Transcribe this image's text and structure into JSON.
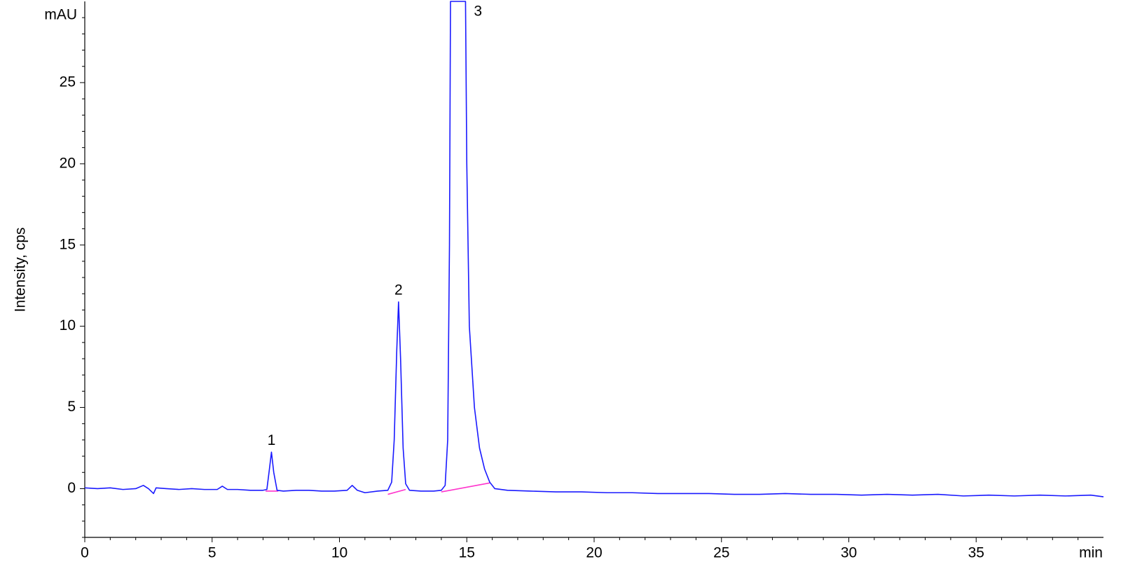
{
  "chart_data": {
    "type": "line",
    "y_label": "Intensity, cps",
    "y_unit": "mAU",
    "x_unit": "min",
    "x": [
      0,
      0.5,
      1,
      1.5,
      2,
      2.3,
      2.5,
      2.7,
      2.8,
      3.2,
      3.7,
      4.2,
      4.7,
      5.2,
      5.4,
      5.6,
      6.0,
      6.5,
      7.0,
      7.15,
      7.25,
      7.33,
      7.42,
      7.55,
      7.8,
      8.3,
      8.8,
      9.3,
      9.8,
      10.3,
      10.5,
      10.7,
      11.0,
      11.5,
      11.9,
      12.05,
      12.15,
      12.25,
      12.32,
      12.4,
      12.5,
      12.6,
      12.75,
      13.2,
      13.7,
      14.0,
      14.15,
      14.25,
      14.32,
      14.36,
      14.95,
      15.0,
      15.1,
      15.3,
      15.5,
      15.7,
      15.9,
      16.1,
      16.6,
      17.5,
      18.5,
      19.5,
      20.5,
      21.5,
      22.5,
      23.5,
      24.5,
      25.5,
      26.5,
      27.5,
      28.5,
      29.5,
      30.5,
      31.5,
      32.5,
      33.5,
      34.5,
      35.5,
      36.5,
      37.5,
      38.5,
      39.5,
      40
    ],
    "series": [
      {
        "color": "#1a1aff",
        "values": [
          0.05,
          0.0,
          0.05,
          -0.05,
          0.0,
          0.2,
          0.0,
          -0.3,
          0.05,
          0.0,
          -0.05,
          0.0,
          -0.05,
          -0.05,
          0.15,
          -0.05,
          -0.05,
          -0.1,
          -0.1,
          -0.05,
          1.2,
          2.25,
          1.0,
          -0.1,
          -0.15,
          -0.1,
          -0.1,
          -0.15,
          -0.15,
          -0.1,
          0.2,
          -0.1,
          -0.25,
          -0.15,
          -0.1,
          0.4,
          3.0,
          8.5,
          11.5,
          8.0,
          2.5,
          0.3,
          -0.1,
          -0.15,
          -0.15,
          -0.1,
          0.2,
          3.0,
          15,
          30,
          30,
          20,
          10,
          5.0,
          2.5,
          1.2,
          0.4,
          0.0,
          -0.1,
          -0.15,
          -0.2,
          -0.2,
          -0.25,
          -0.25,
          -0.3,
          -0.3,
          -0.3,
          -0.35,
          -0.35,
          -0.3,
          -0.35,
          -0.35,
          -0.4,
          -0.35,
          -0.4,
          -0.35,
          -0.45,
          -0.4,
          -0.45,
          -0.4,
          -0.45,
          -0.4,
          -0.5
        ]
      }
    ],
    "baselines": {
      "color": "#ff33cc",
      "segments": [
        {
          "x": [
            7.1,
            7.6
          ],
          "values": [
            -0.15,
            -0.15
          ]
        },
        {
          "x": [
            11.9,
            12.6
          ],
          "values": [
            -0.35,
            -0.05
          ]
        },
        {
          "x": [
            14.0,
            15.9
          ],
          "values": [
            -0.2,
            0.35
          ]
        }
      ]
    },
    "peaks": [
      {
        "label": "1",
        "x": 7.33,
        "y": 2.25
      },
      {
        "label": "2",
        "x": 12.32,
        "y": 11.5
      },
      {
        "label": "3",
        "x": 14.95,
        "y": 30
      }
    ],
    "xlim": [
      0,
      40
    ],
    "ylim": [
      -3,
      30
    ],
    "xticks": [
      0,
      5,
      10,
      15,
      20,
      25,
      30,
      35
    ],
    "yticks": [
      0,
      5,
      10,
      15,
      20,
      25
    ],
    "x_minor_ticks": [
      1,
      2,
      3,
      4,
      6,
      7,
      8,
      9,
      11,
      12,
      13,
      14,
      16,
      17,
      18,
      19,
      21,
      22,
      23,
      24,
      26,
      27,
      28,
      29,
      31,
      32,
      33,
      34,
      36,
      37,
      38,
      39
    ],
    "y_minor_ticks": [
      -3,
      -2,
      -1,
      1,
      2,
      3,
      4,
      6,
      7,
      8,
      9,
      11,
      12,
      13,
      14,
      16,
      17,
      18,
      19,
      21,
      22,
      23,
      24,
      26,
      27,
      28,
      29
    ]
  }
}
